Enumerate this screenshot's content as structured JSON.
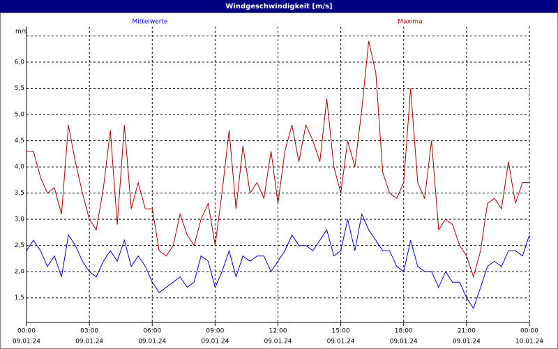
{
  "chart_data": {
    "type": "line",
    "title": "Windgeschwindigkeit [m/s]",
    "ylabel": "m/s",
    "x": [
      0,
      0.33,
      0.67,
      1,
      1.33,
      1.67,
      2,
      2.33,
      2.67,
      3,
      3.33,
      3.67,
      4,
      4.33,
      4.67,
      5,
      5.33,
      5.67,
      6,
      6.33,
      6.67,
      7,
      7.33,
      7.67,
      8,
      8.33,
      8.67,
      9,
      9.33,
      9.67,
      10,
      10.33,
      10.67,
      11,
      11.33,
      11.67,
      12,
      12.33,
      12.67,
      13,
      13.33,
      13.67,
      14,
      14.33,
      14.67,
      15,
      15.33,
      15.67,
      16,
      16.33,
      16.67,
      17,
      17.33,
      17.67,
      18,
      18.33,
      18.67,
      19,
      19.33,
      19.67,
      20,
      20.33,
      20.67,
      21,
      21.33,
      21.67,
      22,
      22.33,
      22.67,
      23,
      23.33,
      23.67,
      24
    ],
    "series": [
      {
        "name": "Mittelwerte",
        "color": "#0000cc",
        "values": [
          2.4,
          2.6,
          2.4,
          2.1,
          2.3,
          1.9,
          2.7,
          2.5,
          2.2,
          2.0,
          1.9,
          2.2,
          2.4,
          2.2,
          2.6,
          2.1,
          2.3,
          2.1,
          1.8,
          1.6,
          1.7,
          1.8,
          1.9,
          1.7,
          1.8,
          2.3,
          2.2,
          1.7,
          2.0,
          2.4,
          1.9,
          2.3,
          2.2,
          2.3,
          2.3,
          2.0,
          2.2,
          2.4,
          2.7,
          2.5,
          2.5,
          2.4,
          2.6,
          2.8,
          2.3,
          2.4,
          3.0,
          2.4,
          3.1,
          2.8,
          2.6,
          2.4,
          2.4,
          2.1,
          2.0,
          2.6,
          2.1,
          2.0,
          2.0,
          1.7,
          2.0,
          1.8,
          1.8,
          1.5,
          1.3,
          1.7,
          2.1,
          2.2,
          2.1,
          2.4,
          2.4,
          2.3,
          2.7
        ]
      },
      {
        "name": "Maxima",
        "color": "#a00000",
        "values": [
          4.3,
          4.3,
          3.8,
          3.5,
          3.6,
          3.1,
          4.8,
          4.1,
          3.5,
          3.0,
          2.8,
          3.6,
          4.7,
          2.9,
          4.8,
          3.2,
          3.7,
          3.2,
          3.2,
          2.4,
          2.3,
          2.5,
          3.1,
          2.7,
          2.5,
          3.0,
          3.3,
          2.5,
          3.5,
          4.7,
          3.2,
          4.4,
          3.5,
          3.7,
          3.4,
          4.3,
          3.3,
          4.3,
          4.8,
          4.1,
          4.8,
          4.5,
          4.1,
          5.3,
          4.0,
          3.5,
          4.5,
          4.0,
          5.1,
          6.4,
          5.8,
          3.9,
          3.5,
          3.4,
          3.7,
          5.5,
          3.7,
          3.4,
          4.5,
          2.8,
          3.0,
          2.9,
          2.5,
          2.3,
          1.9,
          2.4,
          3.3,
          3.4,
          3.2,
          4.1,
          3.3,
          3.7,
          3.7
        ]
      }
    ],
    "xlim": [
      0,
      24
    ],
    "xticks": [
      {
        "value": 0,
        "label": "00:00"
      },
      {
        "value": 3,
        "label": "03:00"
      },
      {
        "value": 6,
        "label": "06:00"
      },
      {
        "value": 9,
        "label": "09:00"
      },
      {
        "value": 12,
        "label": "12:00"
      },
      {
        "value": 15,
        "label": "15:00"
      },
      {
        "value": 18,
        "label": "18:00"
      },
      {
        "value": 21,
        "label": "21:00"
      },
      {
        "value": 24,
        "label": "00:00"
      }
    ],
    "xtick_dates": [
      "09.01.24",
      "09.01.24",
      "09.01.24",
      "09.01.24",
      "09.01.24",
      "09.01.24",
      "09.01.24",
      "09.01.24",
      "10.01.24"
    ],
    "ylim": [
      1.03,
      6.68
    ],
    "yticks": [
      {
        "value": 1.5,
        "label": "1,5"
      },
      {
        "value": 2.0,
        "label": "2,0"
      },
      {
        "value": 2.5,
        "label": "2,5"
      },
      {
        "value": 3.0,
        "label": "3,0"
      },
      {
        "value": 3.5,
        "label": "3,5"
      },
      {
        "value": 4.0,
        "label": "4,0"
      },
      {
        "value": 4.5,
        "label": "4,5"
      },
      {
        "value": 5.0,
        "label": "5,0"
      },
      {
        "value": 5.5,
        "label": "5,5"
      },
      {
        "value": 6.0,
        "label": "6,0"
      },
      {
        "value": 6.5,
        "label": null
      }
    ],
    "grid": true
  }
}
